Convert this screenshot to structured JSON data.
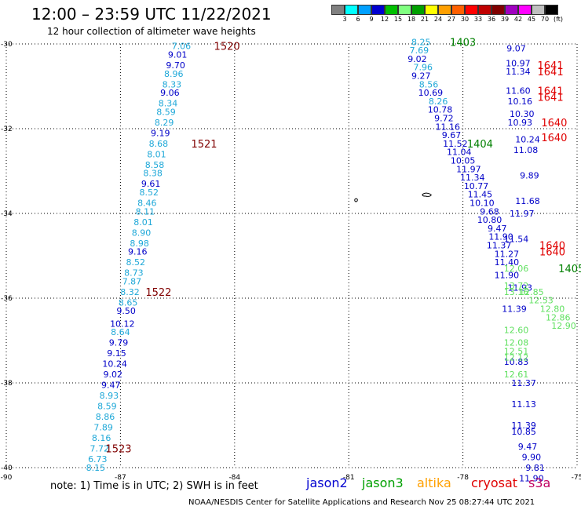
{
  "header": {
    "title": "12:00 – 23:59 UTC 11/22/2021",
    "subtitle": "12 hour collection of altimeter wave heights"
  },
  "colorbar": {
    "colors": [
      "#808080",
      "#00ffff",
      "#00a0ff",
      "#0000d0",
      "#00c000",
      "#80ff80",
      "#00a000",
      "#ffff00",
      "#ffa000",
      "#ff6000",
      "#ff0000",
      "#c00000",
      "#800000",
      "#a000c0",
      "#ff00ff",
      "#c0c0c0",
      "#000000"
    ],
    "labels": [
      "3",
      "6",
      "9",
      "12",
      "15",
      "18",
      "21",
      "24",
      "27",
      "30",
      "33",
      "36",
      "39",
      "42",
      "45",
      "70",
      "(ft)"
    ]
  },
  "chart_data": {
    "type": "scatter",
    "x_range": [
      -90,
      -75
    ],
    "y_range": [
      -40,
      -30
    ],
    "x_ticks": [
      "-90",
      "-87",
      "-84",
      "-81",
      "-78",
      "-75"
    ],
    "y_ticks": [
      "-30",
      "-32",
      "-34",
      "-36",
      "-38",
      "-40"
    ],
    "colors": {
      "light": "#1fa8d8",
      "dark": "#0000c8",
      "green": "#60e060",
      "pass_red": "#e00000",
      "pass_dark": "#800000",
      "pass_green": "#008000"
    },
    "track_values": [
      {
        "t": "7.06",
        "x": -85.4,
        "y": -30.05,
        "c": "light"
      },
      {
        "t": "9.01",
        "x": -85.5,
        "y": -30.25,
        "c": "dark"
      },
      {
        "t": "9.70",
        "x": -85.55,
        "y": -30.5,
        "c": "dark"
      },
      {
        "t": "8.96",
        "x": -85.6,
        "y": -30.7,
        "c": "light"
      },
      {
        "t": "8.33",
        "x": -85.65,
        "y": -30.95,
        "c": "light"
      },
      {
        "t": "9.06",
        "x": -85.7,
        "y": -31.15,
        "c": "dark"
      },
      {
        "t": "8.34",
        "x": -85.75,
        "y": -31.4,
        "c": "light"
      },
      {
        "t": "8.59",
        "x": -85.8,
        "y": -31.6,
        "c": "light"
      },
      {
        "t": "8.29",
        "x": -85.85,
        "y": -31.85,
        "c": "light"
      },
      {
        "t": "9.19",
        "x": -85.95,
        "y": -32.1,
        "c": "dark"
      },
      {
        "t": "8.68",
        "x": -86.0,
        "y": -32.35,
        "c": "light"
      },
      {
        "t": "8.01",
        "x": -86.05,
        "y": -32.6,
        "c": "light"
      },
      {
        "t": "8.58",
        "x": -86.1,
        "y": -32.85,
        "c": "light"
      },
      {
        "t": "8.38",
        "x": -86.15,
        "y": -33.05,
        "c": "light"
      },
      {
        "t": "9.61",
        "x": -86.2,
        "y": -33.3,
        "c": "dark"
      },
      {
        "t": "8.52",
        "x": -86.25,
        "y": -33.5,
        "c": "light"
      },
      {
        "t": "8.46",
        "x": -86.3,
        "y": -33.75,
        "c": "light"
      },
      {
        "t": "8.11",
        "x": -86.35,
        "y": -33.95,
        "c": "light"
      },
      {
        "t": "8.01",
        "x": -86.4,
        "y": -34.2,
        "c": "light"
      },
      {
        "t": "8.90",
        "x": -86.45,
        "y": -34.45,
        "c": "light"
      },
      {
        "t": "8.98",
        "x": -86.5,
        "y": -34.7,
        "c": "light"
      },
      {
        "t": "9.16",
        "x": -86.55,
        "y": -34.9,
        "c": "dark"
      },
      {
        "t": "8.52",
        "x": -86.6,
        "y": -35.15,
        "c": "light"
      },
      {
        "t": "8.73",
        "x": -86.65,
        "y": -35.4,
        "c": "light"
      },
      {
        "t": "7.87",
        "x": -86.7,
        "y": -35.6,
        "c": "light"
      },
      {
        "t": "8.32",
        "x": -86.75,
        "y": -35.85,
        "c": "light"
      },
      {
        "t": "8.65",
        "x": -86.8,
        "y": -36.1,
        "c": "light"
      },
      {
        "t": "9.50",
        "x": -86.85,
        "y": -36.3,
        "c": "dark"
      },
      {
        "t": "10.12",
        "x": -86.95,
        "y": -36.6,
        "c": "dark"
      },
      {
        "t": "8.64",
        "x": -87.0,
        "y": -36.8,
        "c": "light"
      },
      {
        "t": "9.79",
        "x": -87.05,
        "y": -37.05,
        "c": "dark"
      },
      {
        "t": "9.15",
        "x": -87.1,
        "y": -37.3,
        "c": "dark"
      },
      {
        "t": "10.24",
        "x": -87.15,
        "y": -37.55,
        "c": "dark"
      },
      {
        "t": "9.02",
        "x": -87.2,
        "y": -37.8,
        "c": "dark"
      },
      {
        "t": "9.47",
        "x": -87.25,
        "y": -38.05,
        "c": "dark"
      },
      {
        "t": "8.93",
        "x": -87.3,
        "y": -38.3,
        "c": "light"
      },
      {
        "t": "8.59",
        "x": -87.35,
        "y": -38.55,
        "c": "light"
      },
      {
        "t": "8.86",
        "x": -87.4,
        "y": -38.8,
        "c": "light"
      },
      {
        "t": "7.89",
        "x": -87.45,
        "y": -39.05,
        "c": "light"
      },
      {
        "t": "8.16",
        "x": -87.5,
        "y": -39.3,
        "c": "light"
      },
      {
        "t": "7.72",
        "x": -87.55,
        "y": -39.55,
        "c": "light"
      },
      {
        "t": "6.73",
        "x": -87.6,
        "y": -39.8,
        "c": "light"
      },
      {
        "t": "8.15",
        "x": -87.65,
        "y": -40.0,
        "c": "light"
      },
      {
        "t": "8.25",
        "x": -79.1,
        "y": -29.95,
        "c": "light"
      },
      {
        "t": "7.69",
        "x": -79.15,
        "y": -30.15,
        "c": "light"
      },
      {
        "t": "9.02",
        "x": -79.2,
        "y": -30.35,
        "c": "dark"
      },
      {
        "t": "7.96",
        "x": -79.05,
        "y": -30.55,
        "c": "light"
      },
      {
        "t": "9.27",
        "x": -79.1,
        "y": -30.75,
        "c": "dark"
      },
      {
        "t": "8.56",
        "x": -78.9,
        "y": -30.95,
        "c": "light"
      },
      {
        "t": "10.69",
        "x": -78.85,
        "y": -31.15,
        "c": "dark"
      },
      {
        "t": "8.26",
        "x": -78.65,
        "y": -31.35,
        "c": "light"
      },
      {
        "t": "10.78",
        "x": -78.6,
        "y": -31.55,
        "c": "dark"
      },
      {
        "t": "9.72",
        "x": -78.5,
        "y": -31.75,
        "c": "dark"
      },
      {
        "t": "11.16",
        "x": -78.4,
        "y": -31.95,
        "c": "dark"
      },
      {
        "t": "9.67",
        "x": -78.3,
        "y": -32.15,
        "c": "dark"
      },
      {
        "t": "11.52",
        "x": -78.2,
        "y": -32.35,
        "c": "dark"
      },
      {
        "t": "11.04",
        "x": -78.1,
        "y": -32.55,
        "c": "dark"
      },
      {
        "t": "10.05",
        "x": -78.0,
        "y": -32.75,
        "c": "dark"
      },
      {
        "t": "11.97",
        "x": -77.85,
        "y": -32.95,
        "c": "dark"
      },
      {
        "t": "11.34",
        "x": -77.75,
        "y": -33.15,
        "c": "dark"
      },
      {
        "t": "10.77",
        "x": -77.65,
        "y": -33.35,
        "c": "dark"
      },
      {
        "t": "11.45",
        "x": -77.55,
        "y": -33.55,
        "c": "dark"
      },
      {
        "t": "10.10",
        "x": -77.5,
        "y": -33.75,
        "c": "dark"
      },
      {
        "t": "9.68",
        "x": -77.3,
        "y": -33.95,
        "c": "dark"
      },
      {
        "t": "10.80",
        "x": -77.3,
        "y": -34.15,
        "c": "dark"
      },
      {
        "t": "9.47",
        "x": -77.1,
        "y": -34.35,
        "c": "dark"
      },
      {
        "t": "11.90",
        "x": -77.0,
        "y": -34.55,
        "c": "dark"
      },
      {
        "t": "11.37",
        "x": -77.05,
        "y": -34.75,
        "c": "dark"
      },
      {
        "t": "11.27",
        "x": -76.85,
        "y": -34.95,
        "c": "dark"
      },
      {
        "t": "9.07",
        "x": -76.6,
        "y": -30.1,
        "c": "dark"
      },
      {
        "t": "10.97",
        "x": -76.55,
        "y": -30.45,
        "c": "dark"
      },
      {
        "t": "11.34",
        "x": -76.55,
        "y": -30.65,
        "c": "dark"
      },
      {
        "t": "11.60",
        "x": -76.55,
        "y": -31.1,
        "c": "dark"
      },
      {
        "t": "10.16",
        "x": -76.5,
        "y": -31.35,
        "c": "dark"
      },
      {
        "t": "10.30",
        "x": -76.45,
        "y": -31.65,
        "c": "dark"
      },
      {
        "t": "10.93",
        "x": -76.5,
        "y": -31.85,
        "c": "dark"
      },
      {
        "t": "10.24",
        "x": -76.3,
        "y": -32.25,
        "c": "dark"
      },
      {
        "t": "11.08",
        "x": -76.35,
        "y": -32.5,
        "c": "dark"
      },
      {
        "t": "9.89",
        "x": -76.25,
        "y": -33.1,
        "c": "dark"
      },
      {
        "t": "11.68",
        "x": -76.3,
        "y": -33.7,
        "c": "dark"
      },
      {
        "t": "11.97",
        "x": -76.45,
        "y": -34.0,
        "c": "dark"
      },
      {
        "t": "11.54",
        "x": -76.6,
        "y": -34.6,
        "c": "dark"
      },
      {
        "t": "11.40",
        "x": -76.85,
        "y": -35.15,
        "c": "dark"
      },
      {
        "t": "11.90",
        "x": -76.85,
        "y": -35.45,
        "c": "dark"
      },
      {
        "t": "11.93",
        "x": -76.5,
        "y": -35.75,
        "c": "dark"
      },
      {
        "t": "11.39",
        "x": -76.65,
        "y": -36.25,
        "c": "dark"
      },
      {
        "t": "10.83",
        "x": -76.6,
        "y": -37.5,
        "c": "dark"
      },
      {
        "t": "11.37",
        "x": -76.4,
        "y": -38.0,
        "c": "dark"
      },
      {
        "t": "11.13",
        "x": -76.4,
        "y": -38.5,
        "c": "dark"
      },
      {
        "t": "11.39",
        "x": -76.4,
        "y": -39.0,
        "c": "dark"
      },
      {
        "t": "10.85",
        "x": -76.4,
        "y": -39.15,
        "c": "dark"
      },
      {
        "t": "9.47",
        "x": -76.3,
        "y": -39.5,
        "c": "dark"
      },
      {
        "t": "9.90",
        "x": -76.2,
        "y": -39.75,
        "c": "dark"
      },
      {
        "t": "9.81",
        "x": -76.1,
        "y": -40.0,
        "c": "dark"
      },
      {
        "t": "11.90",
        "x": -76.2,
        "y": -40.25,
        "c": "dark"
      },
      {
        "t": "12.06",
        "x": -76.6,
        "y": -35.3,
        "c": "green"
      },
      {
        "t": "13.72",
        "x": -76.6,
        "y": -35.7,
        "c": "green"
      },
      {
        "t": "13.16",
        "x": -76.6,
        "y": -35.85,
        "c": "green"
      },
      {
        "t": "12.85",
        "x": -76.2,
        "y": -35.85,
        "c": "green"
      },
      {
        "t": "12.53",
        "x": -75.95,
        "y": -36.05,
        "c": "green"
      },
      {
        "t": "12.80",
        "x": -75.65,
        "y": -36.25,
        "c": "green"
      },
      {
        "t": "12.86",
        "x": -75.5,
        "y": -36.45,
        "c": "green"
      },
      {
        "t": "12.90",
        "x": -75.35,
        "y": -36.65,
        "c": "green"
      },
      {
        "t": "12.60",
        "x": -76.6,
        "y": -36.75,
        "c": "green"
      },
      {
        "t": "12.08",
        "x": -76.6,
        "y": -37.05,
        "c": "green"
      },
      {
        "t": "12.51",
        "x": -76.6,
        "y": -37.25,
        "c": "green"
      },
      {
        "t": "12.12",
        "x": -76.6,
        "y": -37.4,
        "c": "green"
      },
      {
        "t": "12.61",
        "x": -76.6,
        "y": -37.8,
        "c": "green"
      }
    ],
    "pass_labels": [
      {
        "t": "1520",
        "x": -84.2,
        "y": -30.05,
        "c": "pass_dark"
      },
      {
        "t": "1521",
        "x": -84.8,
        "y": -32.35,
        "c": "pass_dark"
      },
      {
        "t": "1522",
        "x": -86.0,
        "y": -35.85,
        "c": "pass_dark"
      },
      {
        "t": "1523",
        "x": -87.05,
        "y": -39.55,
        "c": "pass_dark"
      },
      {
        "t": "1403",
        "x": -78.0,
        "y": -29.95,
        "c": "pass_green"
      },
      {
        "t": "1404",
        "x": -77.55,
        "y": -32.35,
        "c": "pass_green"
      },
      {
        "t": "1405",
        "x": -75.15,
        "y": -35.3,
        "c": "pass_green"
      },
      {
        "t": "1641",
        "x": -75.7,
        "y": -30.5,
        "c": "pass_red"
      },
      {
        "t": "1641",
        "x": -75.7,
        "y": -30.65,
        "c": "pass_red"
      },
      {
        "t": "1641",
        "x": -75.7,
        "y": -31.1,
        "c": "pass_red"
      },
      {
        "t": "1641",
        "x": -75.7,
        "y": -31.25,
        "c": "pass_red"
      },
      {
        "t": "1640",
        "x": -75.6,
        "y": -31.85,
        "c": "pass_red"
      },
      {
        "t": "1640",
        "x": -75.6,
        "y": -32.2,
        "c": "pass_red"
      },
      {
        "t": "1640",
        "x": -75.65,
        "y": -34.75,
        "c": "pass_red"
      },
      {
        "t": "1640",
        "x": -75.65,
        "y": -34.9,
        "c": "pass_red"
      }
    ]
  },
  "footer": {
    "note": "note:  1) Time is in UTC;  2) SWH is in feet",
    "legend": [
      {
        "label": "jason2",
        "color": "#0000d0"
      },
      {
        "label": "jason3",
        "color": "#00a000"
      },
      {
        "label": "altika",
        "color": "#ffa000"
      },
      {
        "label": "cryosat",
        "color": "#e00000"
      },
      {
        "label": "s3a",
        "color": "#c00060"
      }
    ],
    "credit": "NOAA/NESDIS Center for Satellite Applications and Research     Nov 25 08:27:44 UTC 2021"
  }
}
